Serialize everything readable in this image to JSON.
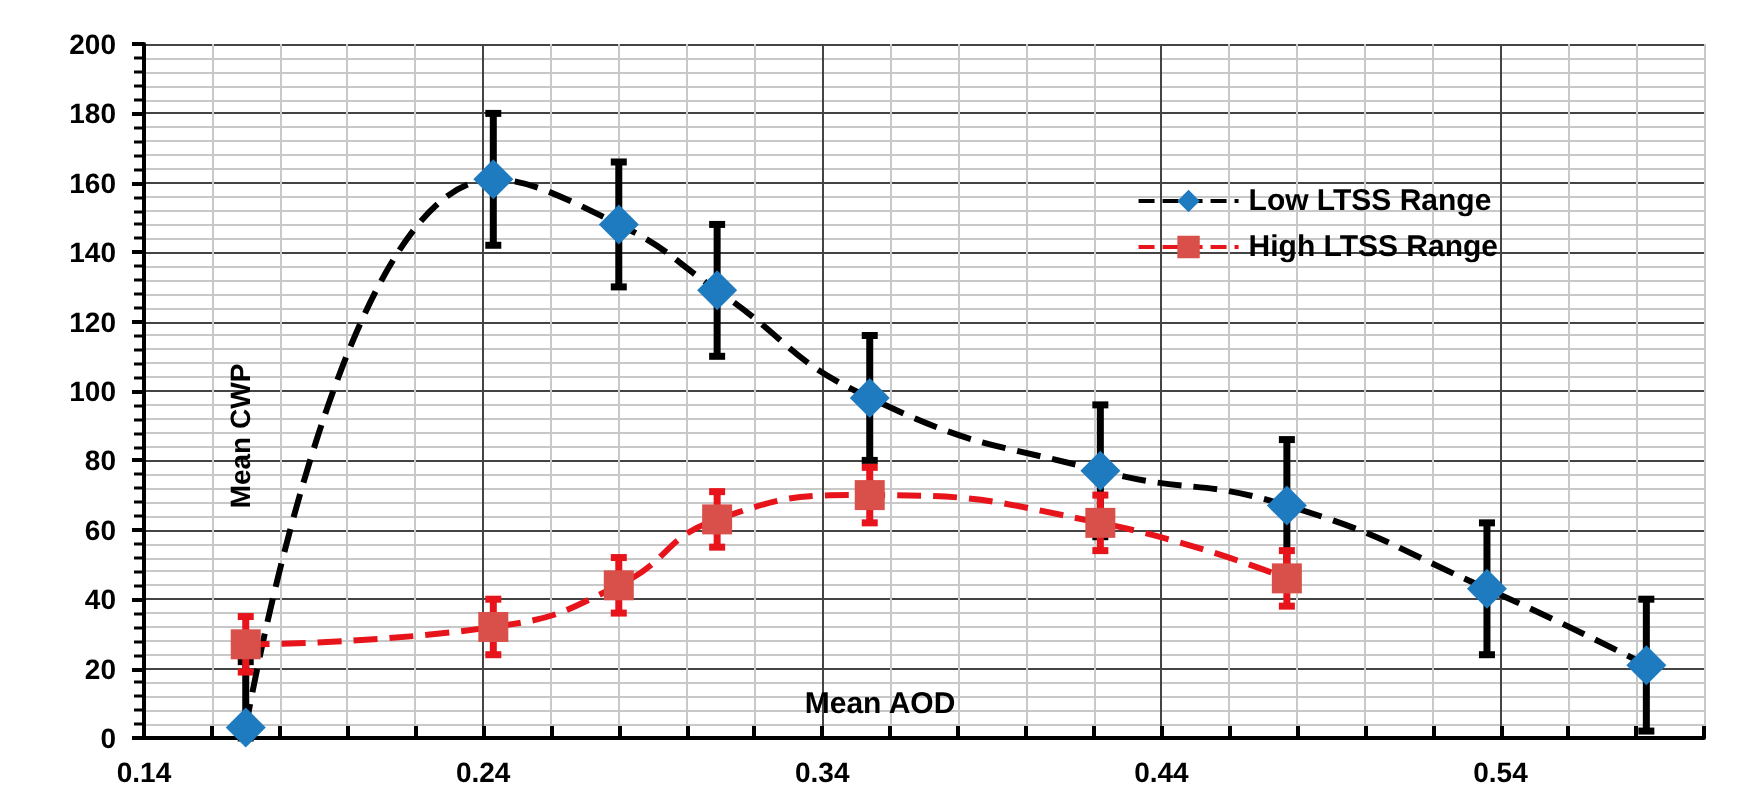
{
  "chart_data": {
    "type": "line",
    "xlabel": "Mean AOD",
    "ylabel": "Mean CWP",
    "xlim": [
      0.14,
      0.6
    ],
    "xticks": [
      0.14,
      0.24,
      0.34,
      0.44,
      0.54
    ],
    "ylim": [
      0,
      200
    ],
    "yticks": [
      0,
      20,
      40,
      60,
      80,
      100,
      120,
      140,
      160,
      180,
      200
    ],
    "grid": true,
    "legend": "top right",
    "line_style": "dashed",
    "series": [
      {
        "name": "Low LTSS Range",
        "color": "#1f7bbf",
        "marker": "diamond",
        "x": [
          0.17,
          0.243,
          0.28,
          0.309,
          0.354,
          0.422,
          0.477,
          0.536,
          0.583
        ],
        "values": [
          3,
          161,
          148,
          129,
          98,
          77,
          67,
          43,
          21
        ],
        "errors": [
          [
            0,
            22
          ],
          19,
          18,
          19,
          18,
          19,
          19,
          19,
          19
        ]
      },
      {
        "name": "High LTSS Range",
        "color": "#d9504a",
        "marker": "square",
        "x": [
          0.17,
          0.243,
          0.28,
          0.309,
          0.354,
          0.422,
          0.477
        ],
        "values": [
          27,
          32,
          44,
          63,
          70,
          62,
          46
        ],
        "errors": [
          8,
          8,
          8,
          8,
          8,
          8,
          8
        ]
      }
    ]
  }
}
